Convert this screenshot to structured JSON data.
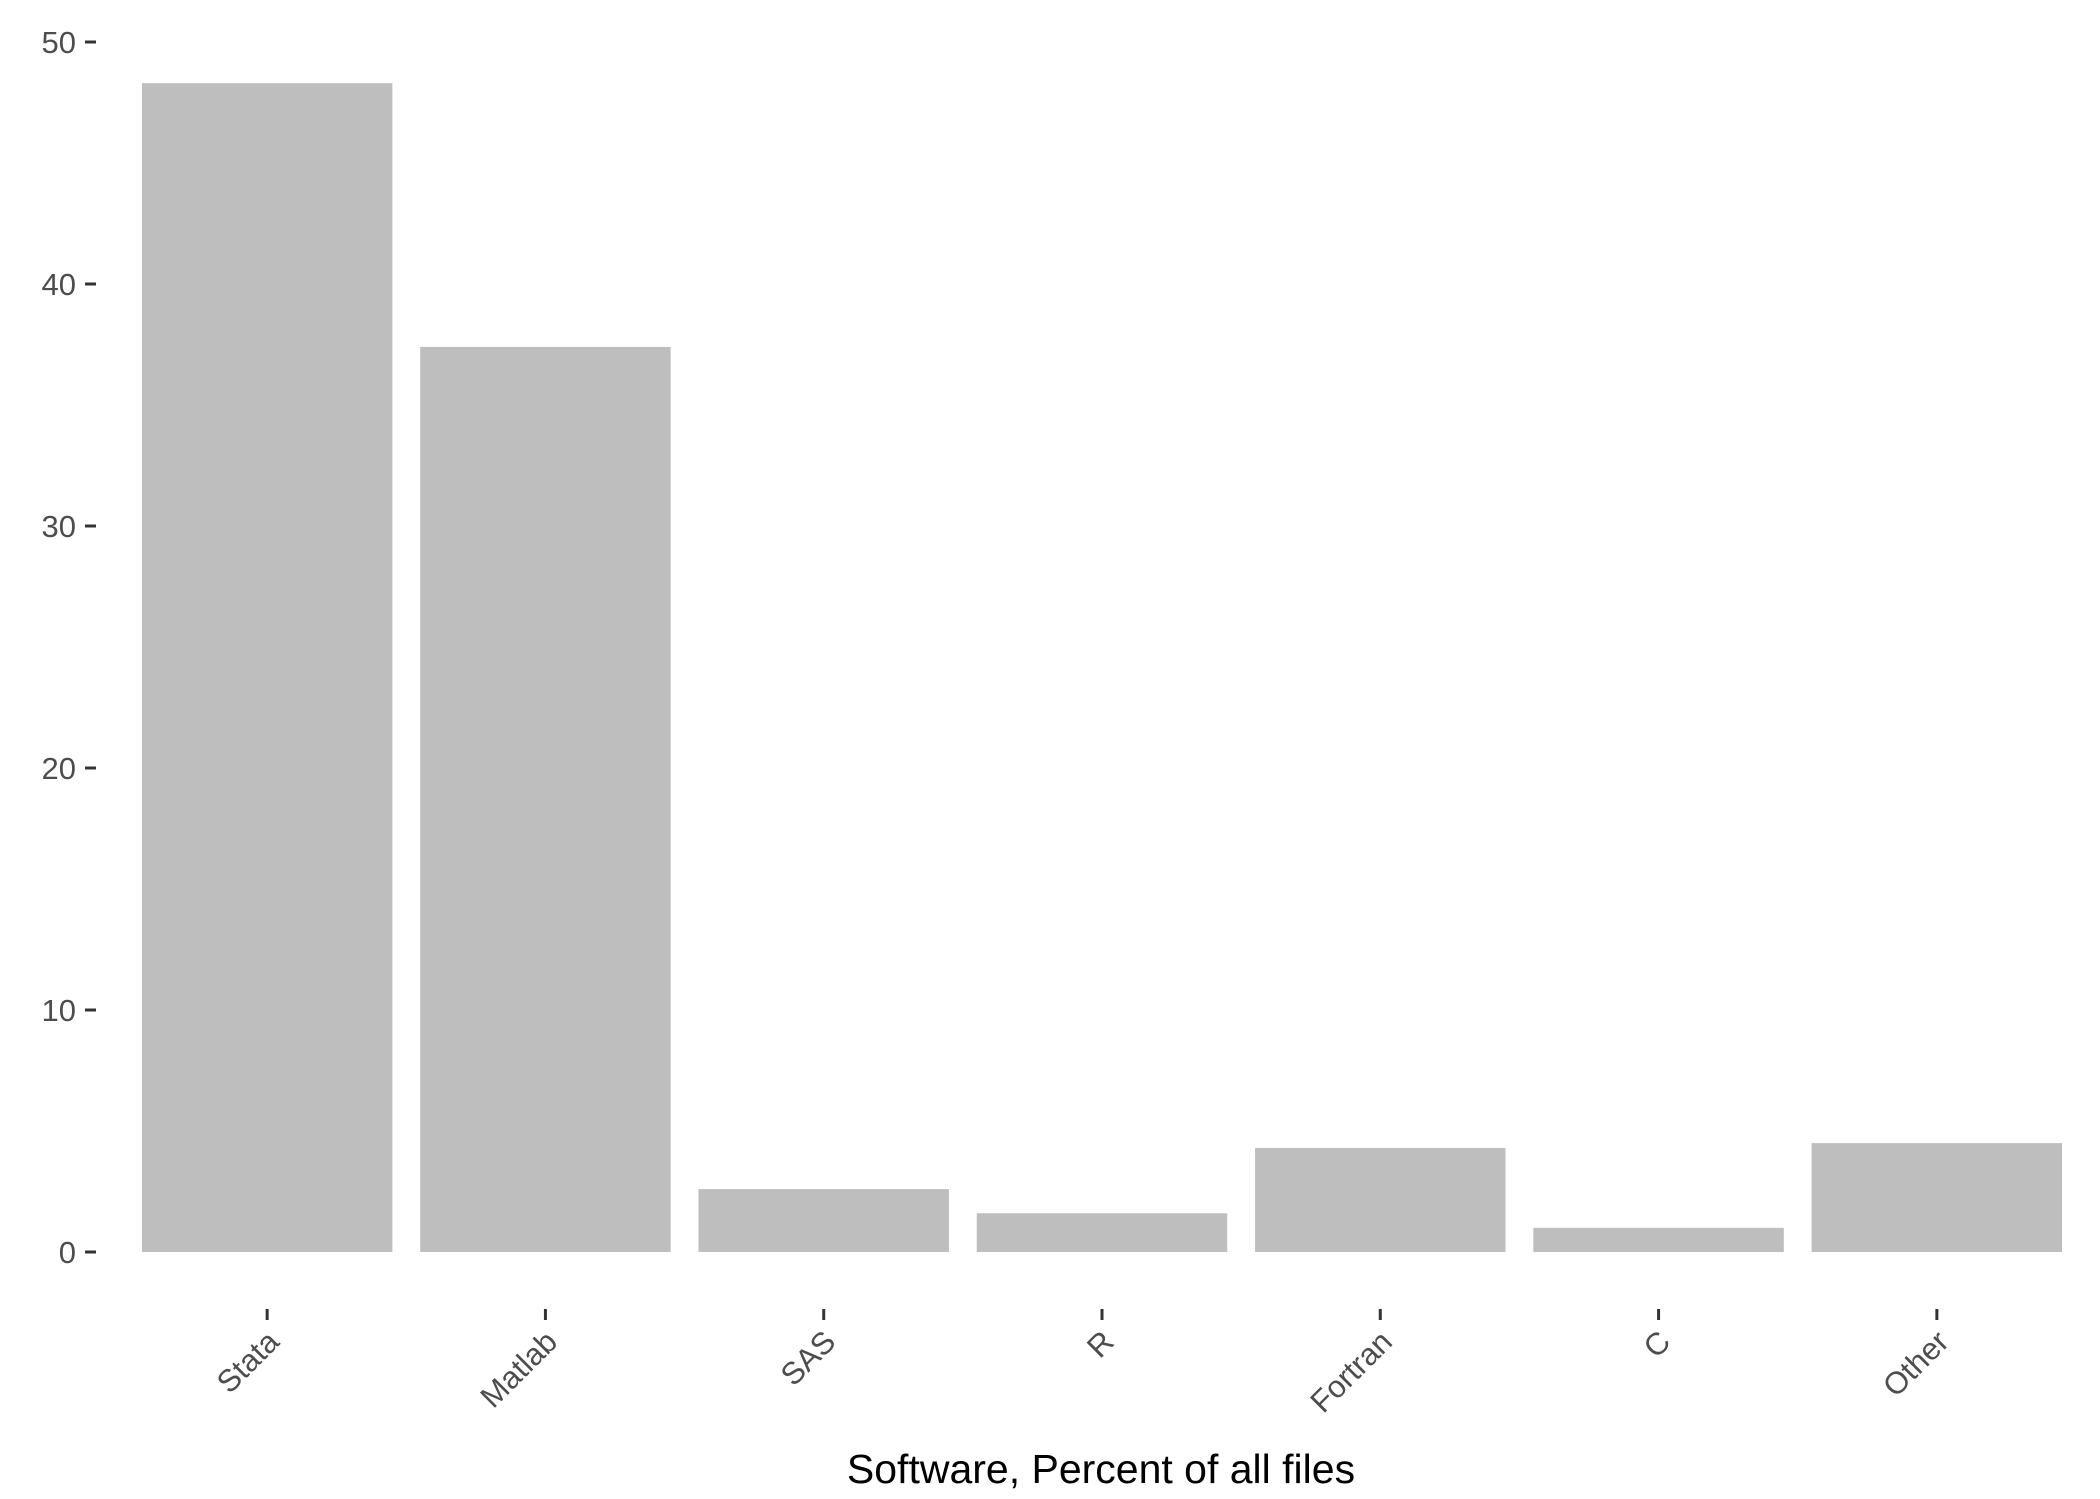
{
  "chart_data": {
    "type": "bar",
    "categories": [
      "Stata",
      "Matlab",
      "SAS",
      "R",
      "Fortran",
      "C",
      "Other"
    ],
    "values": [
      48.3,
      37.4,
      2.6,
      1.6,
      4.3,
      1.0,
      4.5
    ],
    "title": "",
    "xlabel": "Software, Percent of all files",
    "ylabel": "",
    "ylim": [
      0,
      50
    ],
    "yticks": [
      0,
      10,
      20,
      30,
      40,
      50
    ],
    "grid": false,
    "colors": {
      "bar": "#bebebe",
      "tick_text": "#4d4d4d",
      "tick_mark": "#333333",
      "axis_title": "#000000"
    }
  }
}
